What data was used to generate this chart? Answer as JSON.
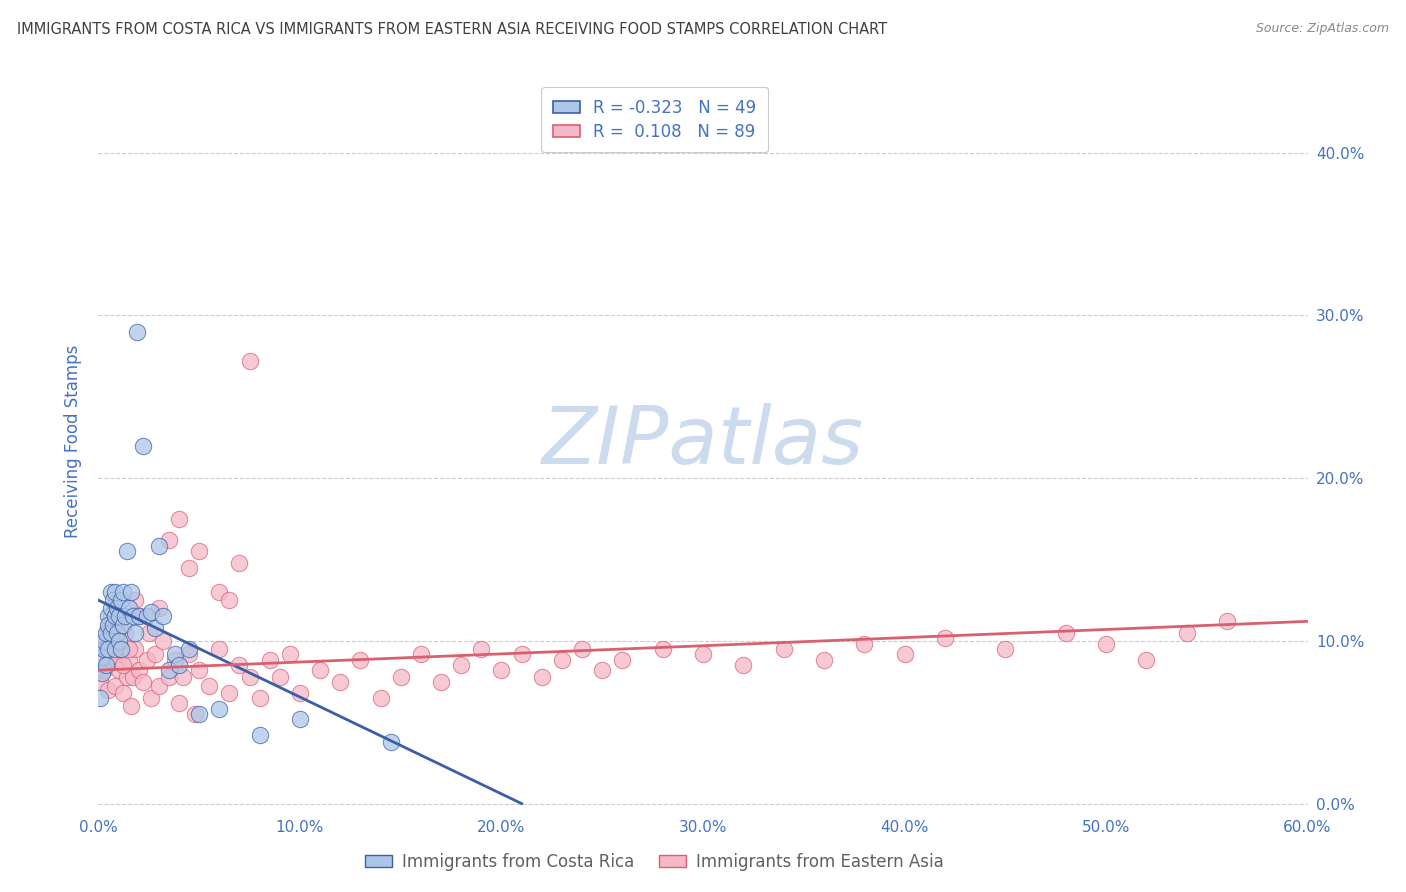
{
  "title": "IMMIGRANTS FROM COSTA RICA VS IMMIGRANTS FROM EASTERN ASIA RECEIVING FOOD STAMPS CORRELATION CHART",
  "source": "Source: ZipAtlas.com",
  "xlabel_blue": "Immigrants from Costa Rica",
  "xlabel_pink": "Immigrants from Eastern Asia",
  "ylabel": "Receiving Food Stamps",
  "xlim": [
    0.0,
    0.6
  ],
  "ylim": [
    -0.005,
    0.45
  ],
  "xticks": [
    0.0,
    0.1,
    0.2,
    0.3,
    0.4,
    0.5,
    0.6
  ],
  "yticks": [
    0.0,
    0.1,
    0.2,
    0.3,
    0.4
  ],
  "ytick_labels_right": [
    "0.0%",
    "10.0%",
    "20.0%",
    "30.0%",
    "40.0%"
  ],
  "xtick_labels": [
    "0.0%",
    "10.0%",
    "20.0%",
    "30.0%",
    "40.0%",
    "50.0%",
    "60.0%"
  ],
  "legend_R_blue": "-0.323",
  "legend_N_blue": "49",
  "legend_R_pink": "0.108",
  "legend_N_pink": "89",
  "color_blue": "#adc6e8",
  "color_pink": "#f5b8c8",
  "color_line_blue": "#3b5ea6",
  "color_line_pink": "#d9606e",
  "watermark": "ZIPatlas",
  "watermark_color": "#ccdcee",
  "background_color": "#ffffff",
  "grid_color": "#cccccc",
  "title_color": "#404040",
  "tick_color": "#4472c4",
  "source_color": "#888888",
  "blue_scatter_x": [
    0.001,
    0.002,
    0.002,
    0.003,
    0.003,
    0.004,
    0.004,
    0.005,
    0.005,
    0.005,
    0.006,
    0.006,
    0.006,
    0.007,
    0.007,
    0.008,
    0.008,
    0.008,
    0.009,
    0.009,
    0.01,
    0.01,
    0.011,
    0.011,
    0.012,
    0.012,
    0.013,
    0.014,
    0.015,
    0.016,
    0.017,
    0.018,
    0.019,
    0.02,
    0.022,
    0.024,
    0.026,
    0.028,
    0.03,
    0.032,
    0.035,
    0.038,
    0.04,
    0.045,
    0.05,
    0.06,
    0.08,
    0.1,
    0.145
  ],
  "blue_scatter_y": [
    0.065,
    0.08,
    0.09,
    0.095,
    0.1,
    0.085,
    0.105,
    0.115,
    0.095,
    0.11,
    0.12,
    0.105,
    0.13,
    0.11,
    0.125,
    0.095,
    0.115,
    0.13,
    0.105,
    0.12,
    0.1,
    0.115,
    0.095,
    0.125,
    0.11,
    0.13,
    0.115,
    0.155,
    0.12,
    0.13,
    0.115,
    0.105,
    0.29,
    0.115,
    0.22,
    0.115,
    0.118,
    0.108,
    0.158,
    0.115,
    0.082,
    0.092,
    0.085,
    0.095,
    0.055,
    0.058,
    0.042,
    0.052,
    0.038
  ],
  "pink_scatter_x": [
    0.001,
    0.002,
    0.003,
    0.004,
    0.005,
    0.005,
    0.006,
    0.007,
    0.008,
    0.009,
    0.01,
    0.011,
    0.012,
    0.013,
    0.014,
    0.015,
    0.016,
    0.017,
    0.018,
    0.02,
    0.022,
    0.024,
    0.026,
    0.028,
    0.03,
    0.032,
    0.035,
    0.038,
    0.04,
    0.042,
    0.045,
    0.048,
    0.05,
    0.055,
    0.06,
    0.065,
    0.07,
    0.075,
    0.08,
    0.085,
    0.09,
    0.095,
    0.1,
    0.11,
    0.12,
    0.13,
    0.14,
    0.15,
    0.16,
    0.17,
    0.18,
    0.19,
    0.2,
    0.21,
    0.22,
    0.23,
    0.24,
    0.25,
    0.26,
    0.28,
    0.3,
    0.32,
    0.34,
    0.36,
    0.38,
    0.4,
    0.42,
    0.45,
    0.48,
    0.5,
    0.52,
    0.54,
    0.56,
    0.005,
    0.008,
    0.012,
    0.015,
    0.018,
    0.02,
    0.025,
    0.03,
    0.035,
    0.04,
    0.045,
    0.05,
    0.06,
    0.065,
    0.07,
    0.075
  ],
  "pink_scatter_y": [
    0.075,
    0.095,
    0.082,
    0.1,
    0.088,
    0.07,
    0.115,
    0.095,
    0.072,
    0.088,
    0.082,
    0.095,
    0.068,
    0.105,
    0.078,
    0.088,
    0.06,
    0.078,
    0.095,
    0.082,
    0.075,
    0.088,
    0.065,
    0.092,
    0.072,
    0.1,
    0.078,
    0.088,
    0.062,
    0.078,
    0.092,
    0.055,
    0.082,
    0.072,
    0.095,
    0.068,
    0.085,
    0.078,
    0.065,
    0.088,
    0.078,
    0.092,
    0.068,
    0.082,
    0.075,
    0.088,
    0.065,
    0.078,
    0.092,
    0.075,
    0.085,
    0.095,
    0.082,
    0.092,
    0.078,
    0.088,
    0.095,
    0.082,
    0.088,
    0.095,
    0.092,
    0.085,
    0.095,
    0.088,
    0.098,
    0.092,
    0.102,
    0.095,
    0.105,
    0.098,
    0.088,
    0.105,
    0.112,
    0.108,
    0.115,
    0.085,
    0.095,
    0.125,
    0.115,
    0.105,
    0.12,
    0.162,
    0.175,
    0.145,
    0.155,
    0.13,
    0.125,
    0.148,
    0.272
  ],
  "blue_trend_x": [
    0.0,
    0.21
  ],
  "blue_trend_y": [
    0.125,
    0.0
  ],
  "pink_trend_x": [
    0.0,
    0.6
  ],
  "pink_trend_y": [
    0.082,
    0.112
  ]
}
